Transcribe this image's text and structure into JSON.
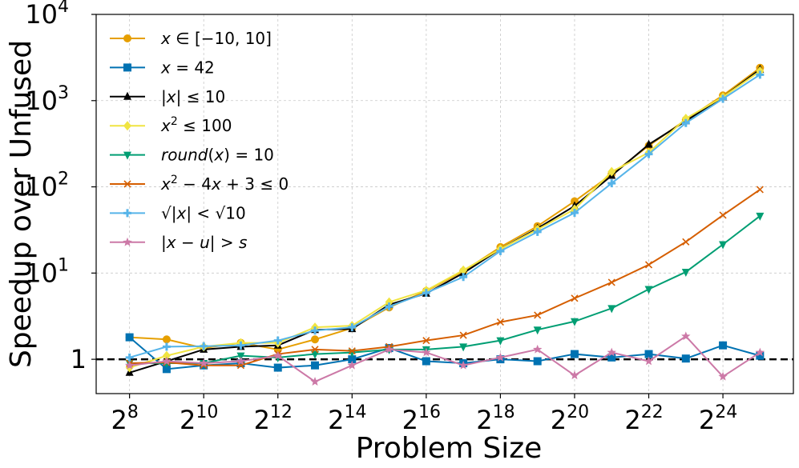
{
  "chart_data": {
    "type": "line",
    "title": "",
    "xlabel": "Problem Size",
    "ylabel": "Speedup over Unfused",
    "xscale": "log2",
    "yscale": "log",
    "x_exponents": [
      8,
      9,
      10,
      11,
      12,
      13,
      14,
      15,
      16,
      17,
      18,
      19,
      20,
      21,
      22,
      23,
      24,
      25
    ],
    "xlim_exponents": [
      7.1,
      25.9
    ],
    "ylim": [
      0.4,
      10000
    ],
    "grid": true,
    "legend_position": "upper-left",
    "x_ticks": [
      {
        "exp": 8,
        "base": "2",
        "sup": "8"
      },
      {
        "exp": 10,
        "base": "2",
        "sup": "10"
      },
      {
        "exp": 12,
        "base": "2",
        "sup": "12"
      },
      {
        "exp": 14,
        "base": "2",
        "sup": "14"
      },
      {
        "exp": 16,
        "base": "2",
        "sup": "16"
      },
      {
        "exp": 18,
        "base": "2",
        "sup": "18"
      },
      {
        "exp": 20,
        "base": "2",
        "sup": "20"
      },
      {
        "exp": 22,
        "base": "2",
        "sup": "22"
      },
      {
        "exp": 24,
        "base": "2",
        "sup": "24"
      }
    ],
    "y_ticks": [
      {
        "value": 1,
        "base": "1",
        "sup": ""
      },
      {
        "value": 10,
        "base": "10",
        "sup": "1"
      },
      {
        "value": 100,
        "base": "10",
        "sup": "2"
      },
      {
        "value": 1000,
        "base": "10",
        "sup": "3"
      },
      {
        "value": 10000,
        "base": "10",
        "sup": "4"
      }
    ],
    "reference_line": {
      "y": 1,
      "style": "dashed",
      "color": "#000000"
    },
    "series": [
      {
        "name": "x ∈ [−10, 10]",
        "color": "#E69F00",
        "marker": "circle",
        "values": [
          1.8,
          1.7,
          1.35,
          1.55,
          1.3,
          1.7,
          2.3,
          4.0,
          6.2,
          10.5,
          20,
          35,
          68,
          140,
          300,
          600,
          1150,
          2400
        ]
      },
      {
        "name": "x = 42",
        "color": "#0072B2",
        "marker": "square",
        "values": [
          1.8,
          0.77,
          0.85,
          0.9,
          0.8,
          0.85,
          1.0,
          1.35,
          0.95,
          0.9,
          1.0,
          0.95,
          1.15,
          1.05,
          1.15,
          1.02,
          1.45,
          1.1
        ]
      },
      {
        "name": "|x| ≤ 10",
        "color": "#000000",
        "marker": "triangle-up",
        "values": [
          0.7,
          0.95,
          1.3,
          1.4,
          1.45,
          2.2,
          2.25,
          4.3,
          5.8,
          10,
          19,
          33,
          60,
          135,
          310,
          580,
          1100,
          2300
        ]
      },
      {
        "name": "x² ≤ 100",
        "color": "#F0E442",
        "marker": "diamond",
        "values": [
          0.8,
          1.1,
          1.4,
          1.55,
          1.55,
          2.35,
          2.45,
          4.6,
          6.3,
          10.8,
          19,
          32,
          55,
          150,
          250,
          620,
          1100,
          2200
        ]
      },
      {
        "name": "round(x) = 10",
        "color": "#009E73",
        "marker": "triangle-down",
        "values": [
          0.9,
          0.9,
          0.9,
          1.1,
          1.05,
          1.15,
          1.2,
          1.3,
          1.3,
          1.4,
          1.65,
          2.2,
          2.75,
          3.9,
          6.5,
          10.3,
          21.5,
          46
        ]
      },
      {
        "name": "x² − 4x + 3 ≤ 0",
        "color": "#D55E00",
        "marker": "x",
        "values": [
          0.9,
          0.92,
          0.85,
          0.85,
          1.15,
          1.3,
          1.25,
          1.4,
          1.65,
          1.9,
          2.7,
          3.25,
          5.1,
          7.8,
          12.5,
          23,
          47,
          93
        ]
      },
      {
        "name": "√|x| < √10",
        "color": "#56B4E9",
        "marker": "plus",
        "values": [
          1.05,
          1.4,
          1.42,
          1.45,
          1.65,
          2.15,
          2.35,
          4.1,
          5.9,
          9.0,
          18,
          30,
          50,
          110,
          240,
          550,
          1050,
          2000
        ]
      },
      {
        "name": "|x − u| > s",
        "color": "#CC79A7",
        "marker": "star",
        "values": [
          0.85,
          0.95,
          0.9,
          0.95,
          1.1,
          0.55,
          0.85,
          1.3,
          1.2,
          0.85,
          1.05,
          1.3,
          0.65,
          1.2,
          0.95,
          1.85,
          0.63,
          1.2
        ]
      }
    ]
  },
  "legend_items": [
    {
      "html": "<tspan class=\"it\">x</tspan> ∈ [−10, 10]"
    },
    {
      "html": "<tspan class=\"it\">x</tspan> = 42"
    },
    {
      "html": "|<tspan class=\"it\">x</tspan>| ≤ 10"
    },
    {
      "html": "<tspan class=\"it\">x</tspan><tspan class=\"sup\" dy=\"-8\">2</tspan><tspan dy=\"8\"> ≤ 100</tspan>"
    },
    {
      "html": "<tspan class=\"it\">round</tspan>(<tspan class=\"it\">x</tspan>) = 10"
    },
    {
      "html": "<tspan class=\"it\">x</tspan><tspan class=\"sup\" dy=\"-8\">2</tspan><tspan dy=\"8\"> − 4</tspan><tspan class=\"it\">x</tspan> + 3 ≤ 0"
    },
    {
      "html": "√|<tspan class=\"it\">x</tspan>| &lt; √10"
    },
    {
      "html": "|<tspan class=\"it\">x</tspan> − <tspan class=\"it\">u</tspan>| &gt; <tspan class=\"it\">s</tspan>"
    }
  ]
}
